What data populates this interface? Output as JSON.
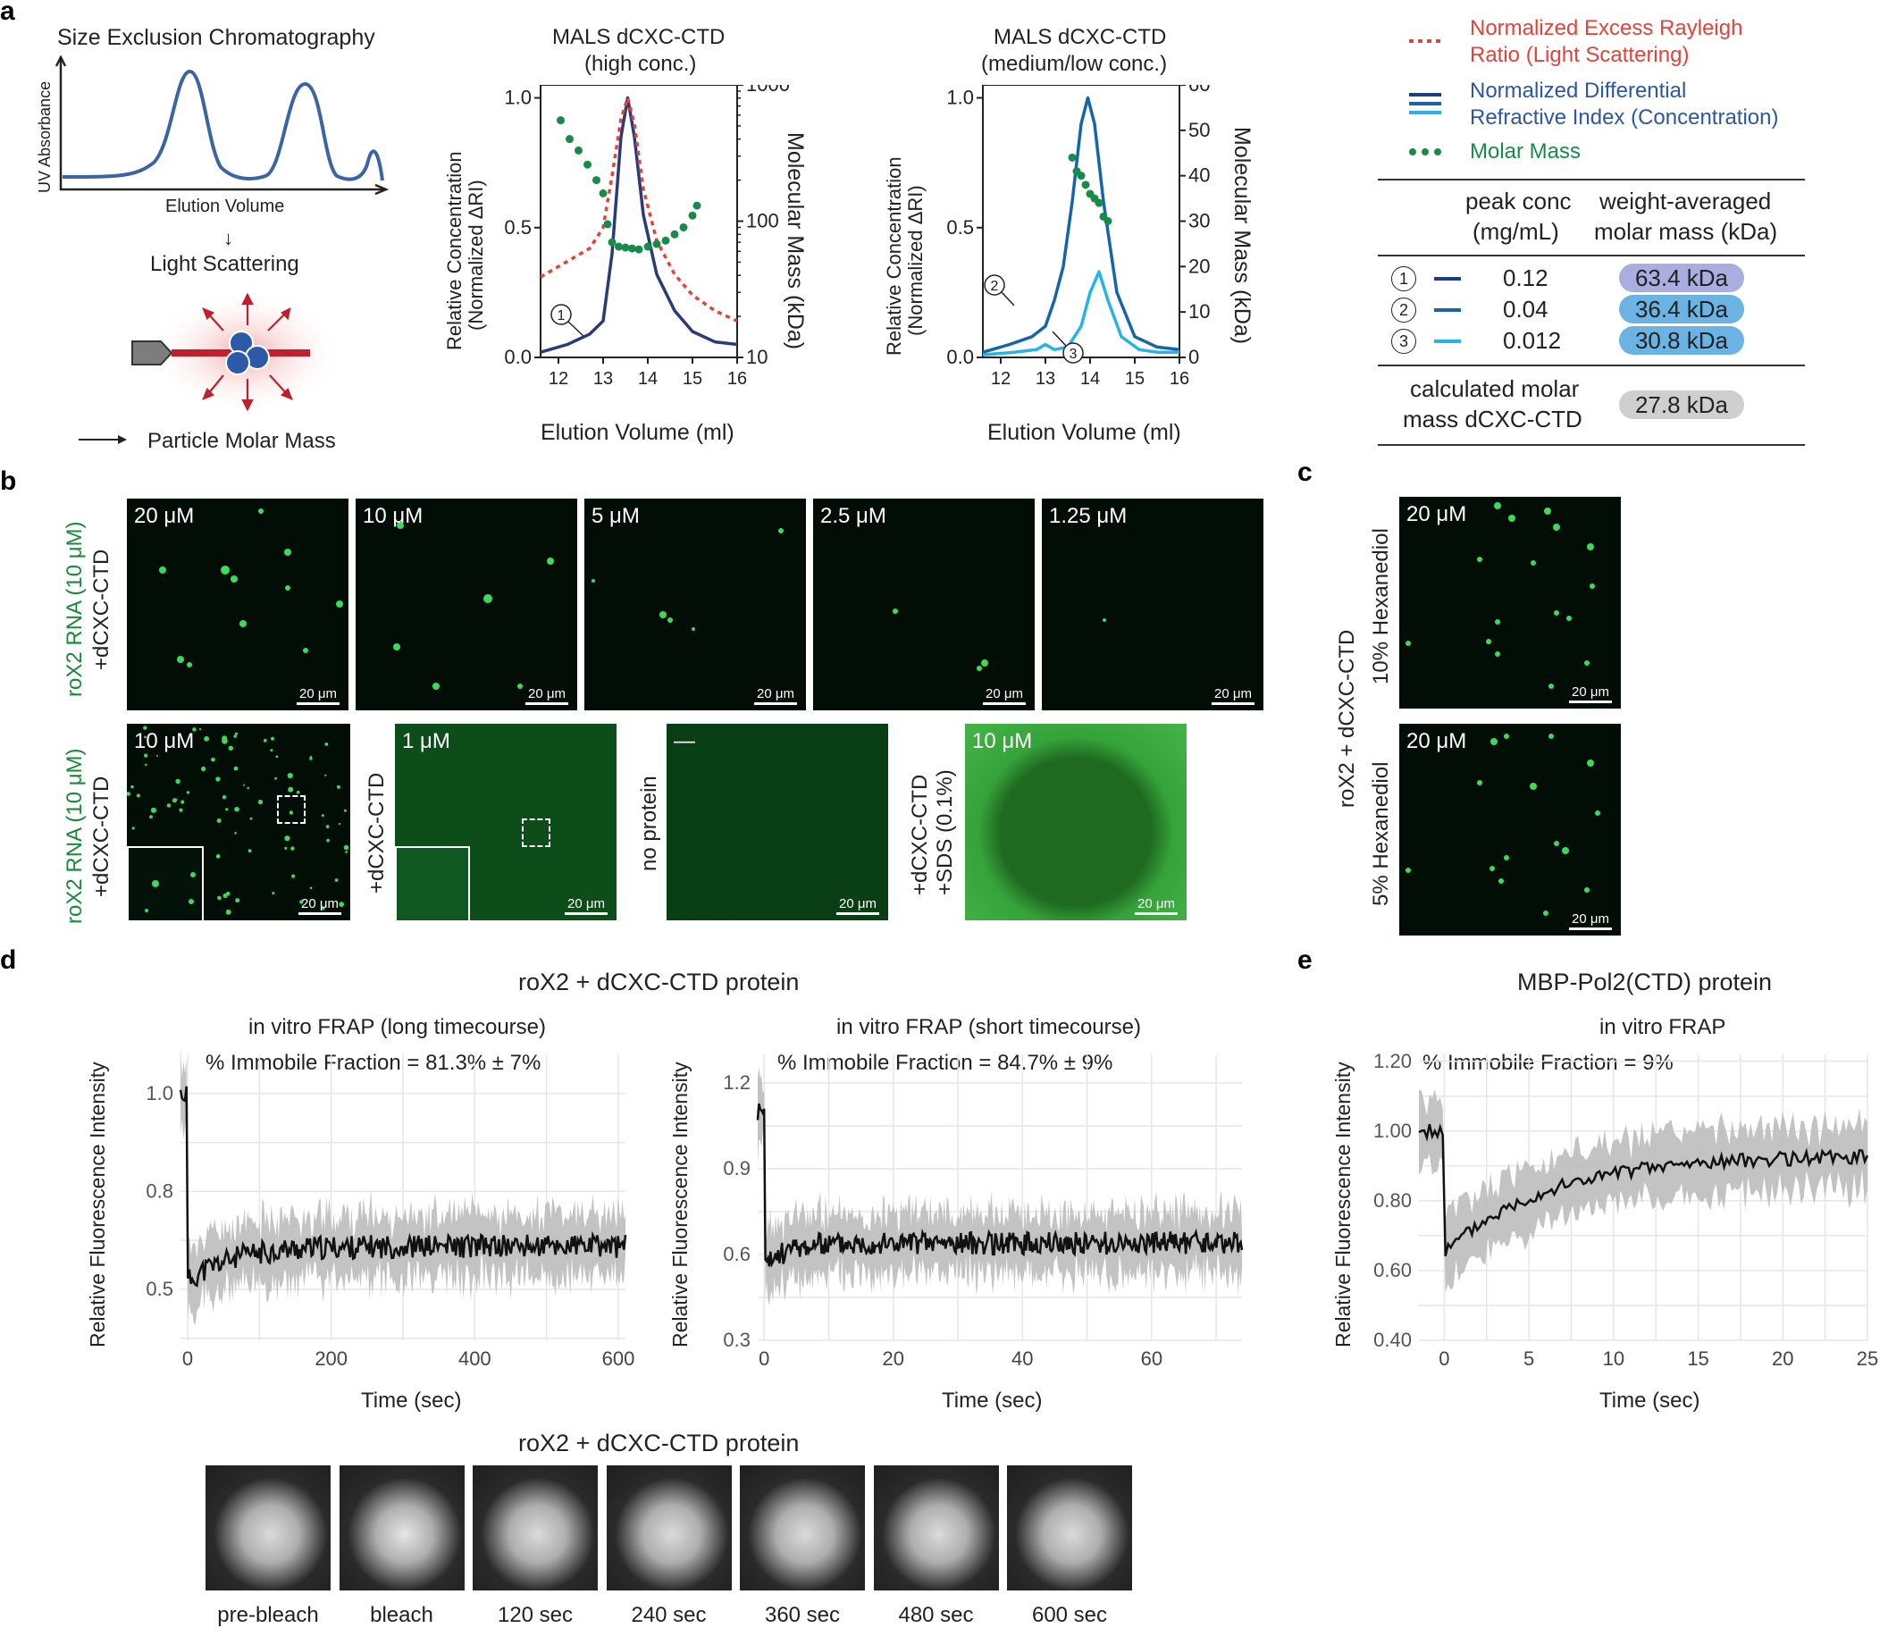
{
  "panel_letters": [
    "a",
    "b",
    "c",
    "d",
    "e"
  ],
  "panel_a": {
    "sec_title": "Size Exclusion Chromatography",
    "sec_ylabel": "UV Absorbance",
    "sec_xlabel": "Elution Volume",
    "light_scattering": "Light Scattering",
    "particle_mass": "Particle Molar Mass",
    "mals_high_title_1": "MALS dCXC-CTD",
    "mals_high_title_2": "(high conc.)",
    "mals_low_title_1": "MALS dCXC-CTD",
    "mals_low_title_2": "(medium/low conc.)",
    "ylabel_left_1": "Relative Concentration",
    "ylabel_left_2": "(Normalized ΔRI)",
    "ylabel_right": "Molecular Mass (kDa)",
    "xlabel": "Elution Volume (ml)",
    "legend_ls_1": "Normalized Excess Rayleigh",
    "legend_ls_2": "Ratio (Light Scattering)",
    "legend_ri_1": "Normalized Differential",
    "legend_ri_2": "Refractive Index (Concentration)",
    "legend_mm": "Molar Mass",
    "table": {
      "header_conc_1": "peak conc",
      "header_conc_2": "(mg/mL)",
      "header_mass_1": "weight-averaged",
      "header_mass_2": "molar mass (kDa)",
      "rows": [
        {
          "num": "1",
          "conc": "0.12",
          "mass": "63.4 kDa",
          "line_color": "#1f3e82",
          "badge_color": "#a9aede"
        },
        {
          "num": "2",
          "conc": "0.04",
          "mass": "36.4 kDa",
          "line_color": "#1565a8",
          "badge_color": "#6ab3e3"
        },
        {
          "num": "3",
          "conc": "0.012",
          "mass": "30.8 kDa",
          "line_color": "#28b2e6",
          "badge_color": "#6ab3e3"
        }
      ],
      "calc_1": "calculated molar",
      "calc_2": "mass dCXC-CTD",
      "calc_value": "27.8 kDa"
    }
  },
  "panel_b": {
    "row1_label_1": "roX2 RNA (10 μM)",
    "row1_label_2": "+dCXC-CTD",
    "row1": [
      "20 μM",
      "10 μM",
      "5 μM",
      "2.5 μM",
      "1.25 μM"
    ],
    "row2_label_1": "roX2 RNA (10 μM)",
    "row2_label_2": "+dCXC-CTD",
    "row2": [
      {
        "conc": "10 μM",
        "side": ""
      },
      {
        "conc": "1 μM",
        "side": "+dCXC-CTD"
      },
      {
        "conc": "—",
        "side": "no protein"
      },
      {
        "conc": "10 μM",
        "side_1": "+dCXC-CTD",
        "side_2": "+SDS (0.1%)"
      }
    ],
    "scale": "20 μm"
  },
  "panel_c": {
    "label_main": "roX2 + dCXC-CTD",
    "top_label": "10% Hexanediol",
    "bottom_label": "5% Hexanediol",
    "conc_top": "20 μM",
    "conc_bottom": "20 μM",
    "scale": "20 μm"
  },
  "panel_d": {
    "title": "roX2 + dCXC-CTD protein",
    "long_title": "in vitro FRAP (long timecourse)",
    "long_immobile": "% Immobile Fraction = 81.3% ± 7%",
    "short_title": "in vitro FRAP (short timecourse)",
    "short_immobile": "% Immobile Fraction = 84.7% ± 9%",
    "ylabel": "Relative Fluorescence Intensity",
    "xlabel": "Time (sec)",
    "strip_title": "roX2 + dCXC-CTD protein",
    "frames": [
      "pre-bleach",
      "bleach",
      "120 sec",
      "240 sec",
      "360 sec",
      "480 sec",
      "600 sec"
    ]
  },
  "panel_e": {
    "title": "MBP-Pol2(CTD) protein",
    "subtitle": "in vitro FRAP",
    "immobile": "% Immobile Fraction = 9%",
    "ylabel": "Relative Fluorescence Intensity",
    "xlabel": "Time (sec)"
  },
  "chart_data": [
    {
      "id": "mals_high",
      "type": "line",
      "title": "MALS dCXC-CTD (high conc.)",
      "xlabel": "Elution Volume (ml)",
      "ylabel": "Relative Concentration (Normalized ΔRI)",
      "ylabel_right": "Molecular Mass (kDa)",
      "xlim": [
        11.6,
        16
      ],
      "ylim": [
        0,
        1.05
      ],
      "y2lim_log": [
        10,
        1000
      ],
      "xticks": [
        12,
        13,
        14,
        15,
        16
      ],
      "yticks": [
        0.0,
        0.5,
        1.0
      ],
      "y2ticks": [
        10,
        100,
        1000
      ],
      "series": [
        {
          "name": "Normalized Differential Refractive Index",
          "color": "#2b3a78",
          "x": [
            11.6,
            12.2,
            12.7,
            13.0,
            13.2,
            13.4,
            13.55,
            13.7,
            13.9,
            14.2,
            14.6,
            15.0,
            15.5,
            16.0
          ],
          "y": [
            0.02,
            0.05,
            0.09,
            0.14,
            0.4,
            0.85,
            1.0,
            0.85,
            0.55,
            0.32,
            0.18,
            0.1,
            0.06,
            0.05
          ]
        },
        {
          "name": "Normalized Excess Rayleigh Ratio",
          "color": "#e0443a",
          "dash": true,
          "x": [
            11.6,
            12.2,
            12.7,
            13.0,
            13.2,
            13.4,
            13.55,
            13.7,
            13.9,
            14.2,
            14.6,
            15.0,
            15.5,
            16.0
          ],
          "y": [
            0.31,
            0.37,
            0.42,
            0.5,
            0.7,
            0.92,
            1.0,
            0.9,
            0.65,
            0.45,
            0.32,
            0.24,
            0.18,
            0.14
          ]
        },
        {
          "name": "Molar Mass (kDa)",
          "color": "#1a8a4a",
          "scatter": true,
          "x": [
            12.05,
            12.25,
            12.45,
            12.65,
            12.85,
            13.0,
            13.1,
            13.2,
            13.35,
            13.5,
            13.65,
            13.8,
            14.0,
            14.2,
            14.4,
            14.6,
            14.8,
            15.0,
            15.1
          ],
          "y": [
            550,
            400,
            330,
            260,
            200,
            160,
            95,
            70,
            65,
            64,
            63,
            62,
            65,
            68,
            72,
            80,
            90,
            110,
            130
          ]
        }
      ]
    },
    {
      "id": "mals_low",
      "type": "line",
      "title": "MALS dCXC-CTD (medium/low conc.)",
      "xlabel": "Elution Volume (ml)",
      "ylabel": "Relative Concentration (Normalized ΔRI)",
      "ylabel_right": "Molecular Mass (kDa)",
      "xlim": [
        11.6,
        16
      ],
      "ylim": [
        0,
        1.05
      ],
      "y2lim": [
        0,
        60
      ],
      "xticks": [
        12,
        13,
        14,
        15,
        16
      ],
      "yticks": [
        0.0,
        0.5,
        1.0
      ],
      "y2ticks": [
        0,
        10,
        20,
        30,
        40,
        50,
        60
      ],
      "series": [
        {
          "name": "0.04 mg/mL",
          "color": "#1565a8",
          "x": [
            11.6,
            12.2,
            12.7,
            13.0,
            13.2,
            13.4,
            13.6,
            13.8,
            13.95,
            14.1,
            14.3,
            14.6,
            15.0,
            15.5,
            16.0
          ],
          "y": [
            0.02,
            0.05,
            0.08,
            0.12,
            0.22,
            0.35,
            0.6,
            0.9,
            1.0,
            0.9,
            0.6,
            0.25,
            0.08,
            0.04,
            0.03
          ]
        },
        {
          "name": "0.012 mg/mL",
          "color": "#28b2e6",
          "x": [
            11.6,
            12.3,
            12.8,
            13.0,
            13.2,
            13.5,
            13.8,
            14.0,
            14.2,
            14.4,
            14.7,
            15.1,
            15.5,
            16.0
          ],
          "y": [
            0.01,
            0.02,
            0.03,
            0.05,
            0.03,
            0.04,
            0.12,
            0.25,
            0.33,
            0.22,
            0.08,
            0.03,
            0.02,
            0.02
          ]
        },
        {
          "name": "Molar Mass (kDa)",
          "color": "#1a8a4a",
          "scatter": true,
          "x": [
            13.6,
            13.7,
            13.8,
            13.9,
            14.0,
            14.1,
            14.2,
            14.3,
            14.4
          ],
          "y": [
            44,
            41,
            40,
            38,
            36,
            35,
            34,
            31,
            30
          ]
        }
      ]
    },
    {
      "id": "frap_long",
      "type": "line",
      "title": "in vitro FRAP (long timecourse)",
      "xlabel": "Time (sec)",
      "ylabel": "Relative Fluorescence Intensity",
      "xlim": [
        -10,
        610
      ],
      "ylim": [
        0.37,
        1.1
      ],
      "xticks": [
        0,
        200,
        400,
        600
      ],
      "yticks": [
        0.5,
        0.75,
        1.0
      ],
      "recovery": {
        "pre": 1.0,
        "bleach_min": 0.52,
        "plateau": 0.61,
        "noise": 0.03,
        "band": 0.09
      }
    },
    {
      "id": "frap_short",
      "type": "line",
      "title": "in vitro FRAP (short timecourse)",
      "xlabel": "Time (sec)",
      "ylabel": "Relative Fluorescence Intensity",
      "xlim": [
        -1,
        74
      ],
      "ylim": [
        0.3,
        1.3
      ],
      "xticks": [
        0,
        20,
        40,
        60
      ],
      "yticks": [
        0.3,
        0.6,
        0.9,
        1.2
      ],
      "recovery": {
        "pre": 1.1,
        "bleach_min": 0.55,
        "plateau": 0.64,
        "noise": 0.04,
        "band": 0.12
      }
    },
    {
      "id": "frap_mbp",
      "type": "line",
      "title": "MBP-Pol2(CTD) protein in vitro FRAP",
      "xlabel": "Time (sec)",
      "ylabel": "Relative Fluorescence Intensity",
      "xlim": [
        -1.5,
        25
      ],
      "ylim": [
        0.4,
        1.22
      ],
      "xticks": [
        0,
        5,
        10,
        15,
        20,
        25
      ],
      "yticks": [
        0.4,
        0.6,
        0.8,
        1.0,
        1.2
      ],
      "recovery": {
        "pre": 1.0,
        "bleach_min": 0.65,
        "plateau": 0.93,
        "noise": 0.02,
        "band": 0.1
      }
    }
  ]
}
